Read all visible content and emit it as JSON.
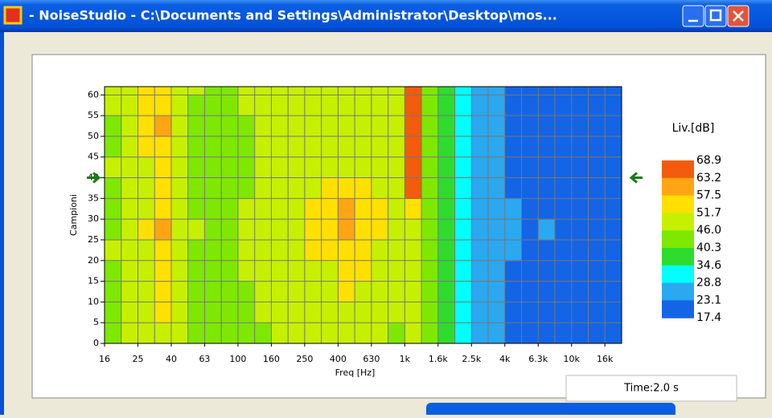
{
  "window": {
    "title": "- NoiseStudio -    C:\\Documents and Settings\\Administrator\\Desktop\\mos...",
    "status": "Time:2.0 s"
  },
  "chart_data": {
    "type": "heatmap",
    "xlabel": "Freq [Hz]",
    "ylabel": "Campioni",
    "categories": [
      "16",
      null,
      "25",
      null,
      "40",
      null,
      "63",
      null,
      "100",
      null,
      "160",
      null,
      "250",
      null,
      "400",
      null,
      "630",
      null,
      "1k",
      null,
      "1.6k",
      null,
      "2.5k",
      null,
      "4k",
      null,
      "6.3k",
      null,
      "10k",
      null,
      "16k"
    ],
    "y": [
      0,
      5,
      10,
      15,
      20,
      25,
      30,
      35,
      40,
      45,
      50,
      55,
      60
    ],
    "ylim": [
      0,
      62
    ],
    "yticks": [
      0,
      5,
      10,
      15,
      20,
      25,
      30,
      35,
      40,
      45,
      50,
      55,
      60
    ],
    "marker_y": 40,
    "grid": true,
    "z": [
      [
        44,
        46,
        48,
        50,
        46,
        44,
        42,
        43,
        44,
        45,
        46,
        46,
        47,
        48,
        50,
        49,
        48,
        45,
        47,
        42,
        37,
        33,
        27,
        25,
        21,
        19,
        20,
        19,
        18,
        19,
        18
      ],
      [
        45,
        47,
        50,
        52,
        47,
        45,
        43,
        44,
        45,
        46,
        47,
        47,
        48,
        49,
        51,
        50,
        48,
        46,
        48,
        43,
        38,
        31,
        27,
        24,
        22,
        20,
        21,
        19,
        19,
        20,
        19
      ],
      [
        44,
        48,
        51,
        53,
        48,
        45,
        42,
        44,
        45,
        46,
        47,
        48,
        49,
        50,
        52,
        51,
        49,
        46,
        49,
        43,
        37,
        32,
        28,
        26,
        22,
        20,
        22,
        20,
        19,
        21,
        19
      ],
      [
        45,
        47,
        50,
        52,
        47,
        44,
        43,
        44,
        46,
        47,
        48,
        48,
        50,
        51,
        53,
        52,
        50,
        47,
        48,
        44,
        38,
        31,
        27,
        25,
        23,
        21,
        22,
        20,
        19,
        20,
        19
      ],
      [
        46,
        48,
        51,
        55,
        48,
        45,
        43,
        45,
        46,
        47,
        49,
        50,
        52,
        54,
        57,
        55,
        51,
        47,
        49,
        44,
        37,
        30,
        27,
        26,
        24,
        22,
        23,
        21,
        20,
        21,
        20
      ],
      [
        45,
        48,
        52,
        58,
        49,
        46,
        44,
        45,
        46,
        47,
        49,
        51,
        53,
        55,
        58,
        56,
        52,
        48,
        50,
        45,
        38,
        31,
        28,
        27,
        25,
        23,
        24,
        22,
        21,
        22,
        20
      ],
      [
        44,
        47,
        51,
        53,
        48,
        45,
        43,
        44,
        46,
        47,
        48,
        50,
        52,
        56,
        59,
        57,
        52,
        47,
        52,
        44,
        37,
        30,
        28,
        26,
        24,
        22,
        23,
        21,
        20,
        22,
        20
      ],
      [
        45,
        48,
        50,
        52,
        47,
        45,
        43,
        44,
        45,
        46,
        48,
        49,
        50,
        52,
        54,
        53,
        50,
        47,
        64,
        43,
        36,
        30,
        27,
        25,
        22,
        20,
        21,
        20,
        19,
        20,
        19
      ],
      [
        46,
        49,
        51,
        53,
        48,
        45,
        44,
        45,
        45,
        46,
        47,
        48,
        49,
        50,
        51,
        50,
        48,
        46,
        66,
        43,
        36,
        31,
        27,
        24,
        21,
        19,
        20,
        19,
        18,
        19,
        18
      ],
      [
        45,
        48,
        52,
        54,
        47,
        45,
        43,
        44,
        45,
        46,
        47,
        47,
        48,
        49,
        50,
        49,
        47,
        46,
        65,
        42,
        37,
        31,
        27,
        24,
        21,
        19,
        20,
        19,
        18,
        19,
        18
      ],
      [
        45,
        48,
        53,
        58,
        48,
        45,
        43,
        44,
        45,
        46,
        47,
        47,
        48,
        49,
        50,
        49,
        48,
        46,
        66,
        43,
        37,
        32,
        27,
        24,
        21,
        19,
        20,
        19,
        18,
        19,
        18
      ],
      [
        46,
        49,
        52,
        54,
        48,
        45,
        44,
        45,
        46,
        46,
        47,
        48,
        48,
        49,
        50,
        49,
        48,
        46,
        65,
        43,
        38,
        32,
        28,
        24,
        22,
        20,
        21,
        19,
        19,
        20,
        19
      ],
      [
        47,
        50,
        53,
        54,
        49,
        46,
        44,
        45,
        46,
        47,
        48,
        48,
        49,
        49,
        50,
        50,
        48,
        47,
        66,
        44,
        39,
        33,
        28,
        25,
        22,
        20,
        21,
        20,
        19,
        20,
        19
      ]
    ],
    "legend": {
      "title": "Liv.[dB]",
      "levels": [
        68.9,
        63.2,
        57.5,
        51.7,
        {
          "value": 46,
          "label": "46.0"
        },
        40.3,
        34.6,
        28.8,
        23.1,
        17.4
      ],
      "colors": [
        "#f25c0c",
        "#ffa514",
        "#ffe000",
        "#c6f000",
        "#7ee800",
        "#2edc2e",
        "#00ffff",
        "#2aa8f0",
        "#1464e6"
      ]
    }
  }
}
